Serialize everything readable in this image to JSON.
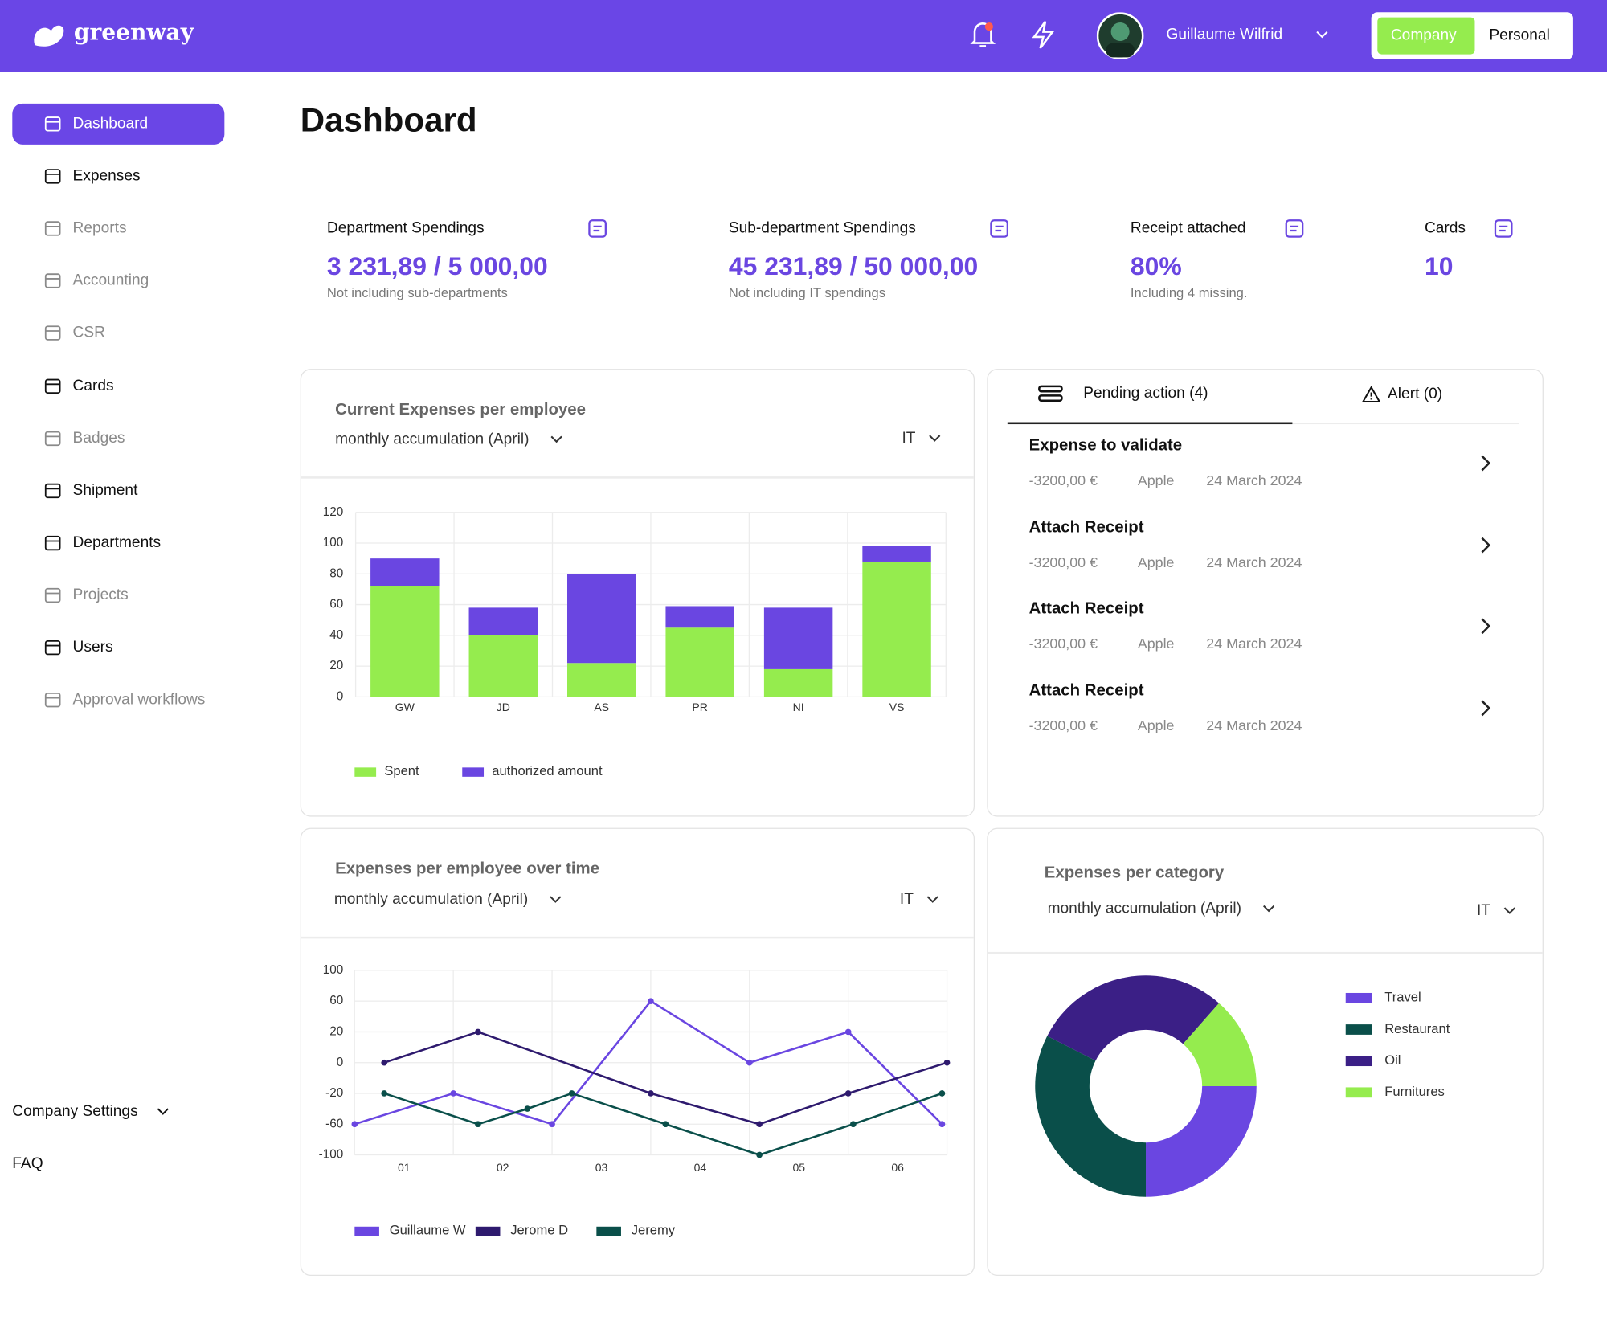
{
  "header": {
    "logo": "greenway",
    "user": "Guillaume Wilfrid",
    "toggle": [
      "Company",
      "Personal"
    ]
  },
  "sidebar": {
    "items": [
      "Dashboard",
      "Expenses",
      "Reports",
      "Accounting",
      "CSR",
      "Cards",
      "Badges",
      "Shipment",
      "Departments",
      "Projects",
      "Users",
      "Approval workflows"
    ],
    "footer": [
      "Company Settings",
      "FAQ"
    ]
  },
  "page_title": "Dashboard",
  "stats": [
    {
      "label": "Department Spendings",
      "value": "3 231,89 / 5 000,00",
      "note": "Not including sub-departments"
    },
    {
      "label": "Sub-department Spendings",
      "value": "45 231,89 / 50 000,00",
      "note": "Not including IT spendings"
    },
    {
      "label": "Receipt attached",
      "value": "80%",
      "note": "Including 4 missing."
    },
    {
      "label": "Cards",
      "value": "10"
    }
  ],
  "pending": {
    "tabs": [
      "Pending action (4)",
      "Alert (0)"
    ],
    "actions": [
      {
        "title": "Expense to validate",
        "amount": "-3200,00 €",
        "merchant": "Apple",
        "date": "24 March 2024"
      },
      {
        "title": "Attach Receipt",
        "amount": "-3200,00 €",
        "merchant": "Apple",
        "date": "24 March 2024"
      },
      {
        "title": "Attach Receipt",
        "amount": "-3200,00 €",
        "merchant": "Apple",
        "date": "24 March 2024"
      },
      {
        "title": "Attach Receipt",
        "amount": "-3200,00 €",
        "merchant": "Apple",
        "date": "24 March 2024"
      }
    ]
  },
  "chart_data": [
    {
      "type": "bar",
      "stacked": true,
      "title": "Current Expenses per employee",
      "subtitle": "monthly accumulation (April)",
      "filter": "IT",
      "categories": [
        "GW",
        "JD",
        "AS",
        "PR",
        "NI",
        "VS"
      ],
      "series": [
        {
          "name": "Spent",
          "color": "#95ec4e",
          "values": [
            72,
            40,
            22,
            45,
            18,
            88
          ]
        },
        {
          "name": "authorized amount",
          "color": "#6a46e1",
          "values": [
            18,
            18,
            58,
            14,
            40,
            10
          ]
        }
      ],
      "ylim": [
        0,
        120
      ],
      "yticks": [
        0,
        20,
        40,
        60,
        80,
        100,
        120
      ],
      "grid": true
    },
    {
      "type": "line",
      "title": "Expenses per employee over time",
      "subtitle": "monthly accumulation (April)",
      "filter": "IT",
      "xlim": [
        0.5,
        6.5
      ],
      "xticks": [
        {
          "value": 1,
          "label": "01"
        },
        {
          "value": 2,
          "label": "02"
        },
        {
          "value": 3,
          "label": "03"
        },
        {
          "value": 4,
          "label": "04"
        },
        {
          "value": 5,
          "label": "05"
        },
        {
          "value": 6,
          "label": "06"
        }
      ],
      "ylim": [
        -100,
        100
      ],
      "yticks": [
        100,
        60,
        20,
        0,
        -20,
        -60,
        -100
      ],
      "grid": true,
      "series": [
        {
          "name": "Guillaume W",
          "color": "#6a46e1",
          "x": [
            0.5,
            1.5,
            2.5,
            3.5,
            4.5,
            5.5,
            6.45
          ],
          "values": [
            -60,
            -20,
            -60,
            60,
            0,
            20,
            -60
          ]
        },
        {
          "name": "Jerome D",
          "color": "#2e1a6e",
          "x": [
            0.8,
            1.75,
            3.5,
            4.6,
            5.5,
            6.5
          ],
          "values": [
            0,
            20,
            -20,
            -60,
            -20,
            0
          ]
        },
        {
          "name": "Jeremy",
          "color": "#0a4f4a",
          "x": [
            0.8,
            1.75,
            2.25,
            2.7,
            3.65,
            4.6,
            5.55,
            6.45
          ],
          "values": [
            -20,
            -60,
            -40,
            -20,
            -60,
            -100,
            -60,
            -20
          ]
        }
      ]
    },
    {
      "type": "pie",
      "donut": true,
      "title": "Expenses per category",
      "subtitle": "monthly accumulation (April)",
      "filter": "IT",
      "categories": [
        "Travel",
        "Restaurant",
        "Oil",
        "Furnitures"
      ],
      "values": [
        25,
        32.5,
        29,
        13.5
      ],
      "colors": [
        "#6a46e1",
        "#0a4f4a",
        "#3b1f86",
        "#95ec4e"
      ]
    }
  ]
}
